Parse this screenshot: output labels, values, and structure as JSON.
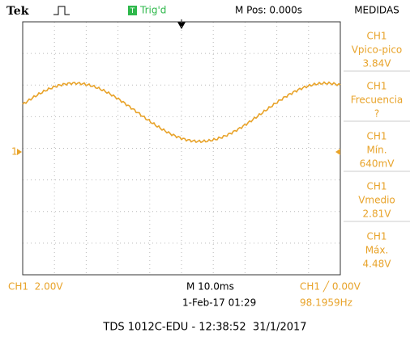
{
  "header": {
    "brand": "Tek",
    "trigger_status": "Trig'd",
    "trigger_icon": "T",
    "position": "M Pos: 0.000s",
    "menu": "MEDIDAS"
  },
  "measurements": [
    {
      "channel": "CH1",
      "name": "Vpico-pico",
      "value": "3.84V"
    },
    {
      "channel": "CH1",
      "name": "Frecuencia",
      "value": "?"
    },
    {
      "channel": "CH1",
      "name": "Mín.",
      "value": "640mV"
    },
    {
      "channel": "CH1",
      "name": "Vmedio",
      "value": "2.81V"
    },
    {
      "channel": "CH1",
      "name": "Máx.",
      "value": "4.48V"
    }
  ],
  "marker": "1",
  "status_bar": {
    "channel_scale": "CH1  2.00V",
    "timebase": "M 10.0ms",
    "date": "1-Feb-17 01:29",
    "trigger": "CH1 ╱ 0.00V",
    "frequency": "98.1959Hz"
  },
  "caption": "TDS 1012C-EDU - 12:38:52  31/1/2017"
}
